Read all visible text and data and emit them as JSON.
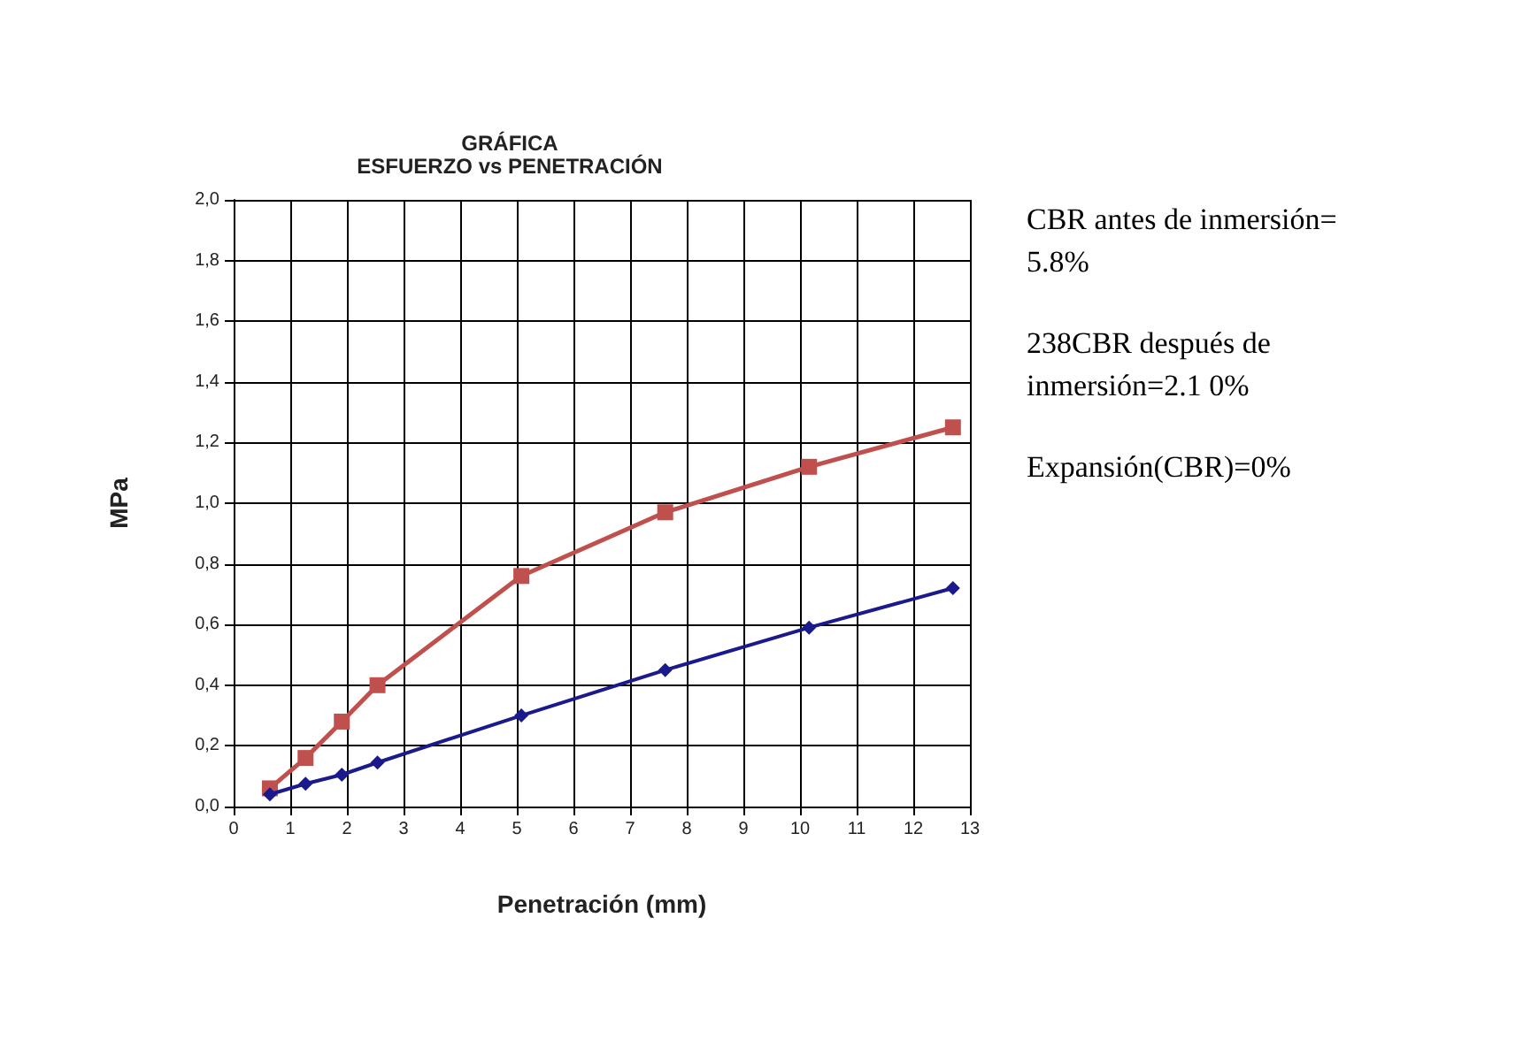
{
  "chart_data": {
    "type": "line",
    "title": "GRÁFICA",
    "subtitle": "ESFUERZO vs PENETRACIÓN",
    "xlabel": "Penetración (mm)",
    "ylabel": "MPa",
    "x": [
      0.64,
      1.27,
      1.91,
      2.54,
      5.08,
      7.62,
      10.16,
      12.7
    ],
    "series": [
      {
        "color": "#1a1a8c",
        "marker": "diamond",
        "values": [
          0.04,
          0.075,
          0.105,
          0.145,
          0.3,
          0.45,
          0.59,
          0.72
        ]
      },
      {
        "color": "#c0504d",
        "marker": "square",
        "values": [
          0.06,
          0.16,
          0.28,
          0.4,
          0.76,
          0.97,
          1.12,
          1.25
        ]
      }
    ],
    "xlim": [
      0,
      13
    ],
    "xticks": [
      0,
      1,
      2,
      3,
      4,
      5,
      6,
      7,
      8,
      9,
      10,
      11,
      12,
      13
    ],
    "ylim": [
      0,
      2
    ],
    "yticks": [
      {
        "value": 0,
        "label": "0,0"
      },
      {
        "value": 0.2,
        "label": "0,2"
      },
      {
        "value": 0.4,
        "label": "0,4"
      },
      {
        "value": 0.6,
        "label": "0,6"
      },
      {
        "value": 0.8,
        "label": "0,8"
      },
      {
        "value": 1,
        "label": "1,0"
      },
      {
        "value": 1.2,
        "label": "1,2"
      },
      {
        "value": 1.4,
        "label": "1,4"
      },
      {
        "value": 1.6,
        "label": "1,6"
      },
      {
        "value": 1.8,
        "label": "1,8"
      },
      {
        "value": 2,
        "label": "2,0"
      }
    ],
    "grid": true,
    "line_style": "solid",
    "annotations": [
      "CBR antes de inmersión= 5.8%",
      "238CBR después de inmersión=2.1 0%",
      "Expansión(CBR)=0%"
    ]
  }
}
